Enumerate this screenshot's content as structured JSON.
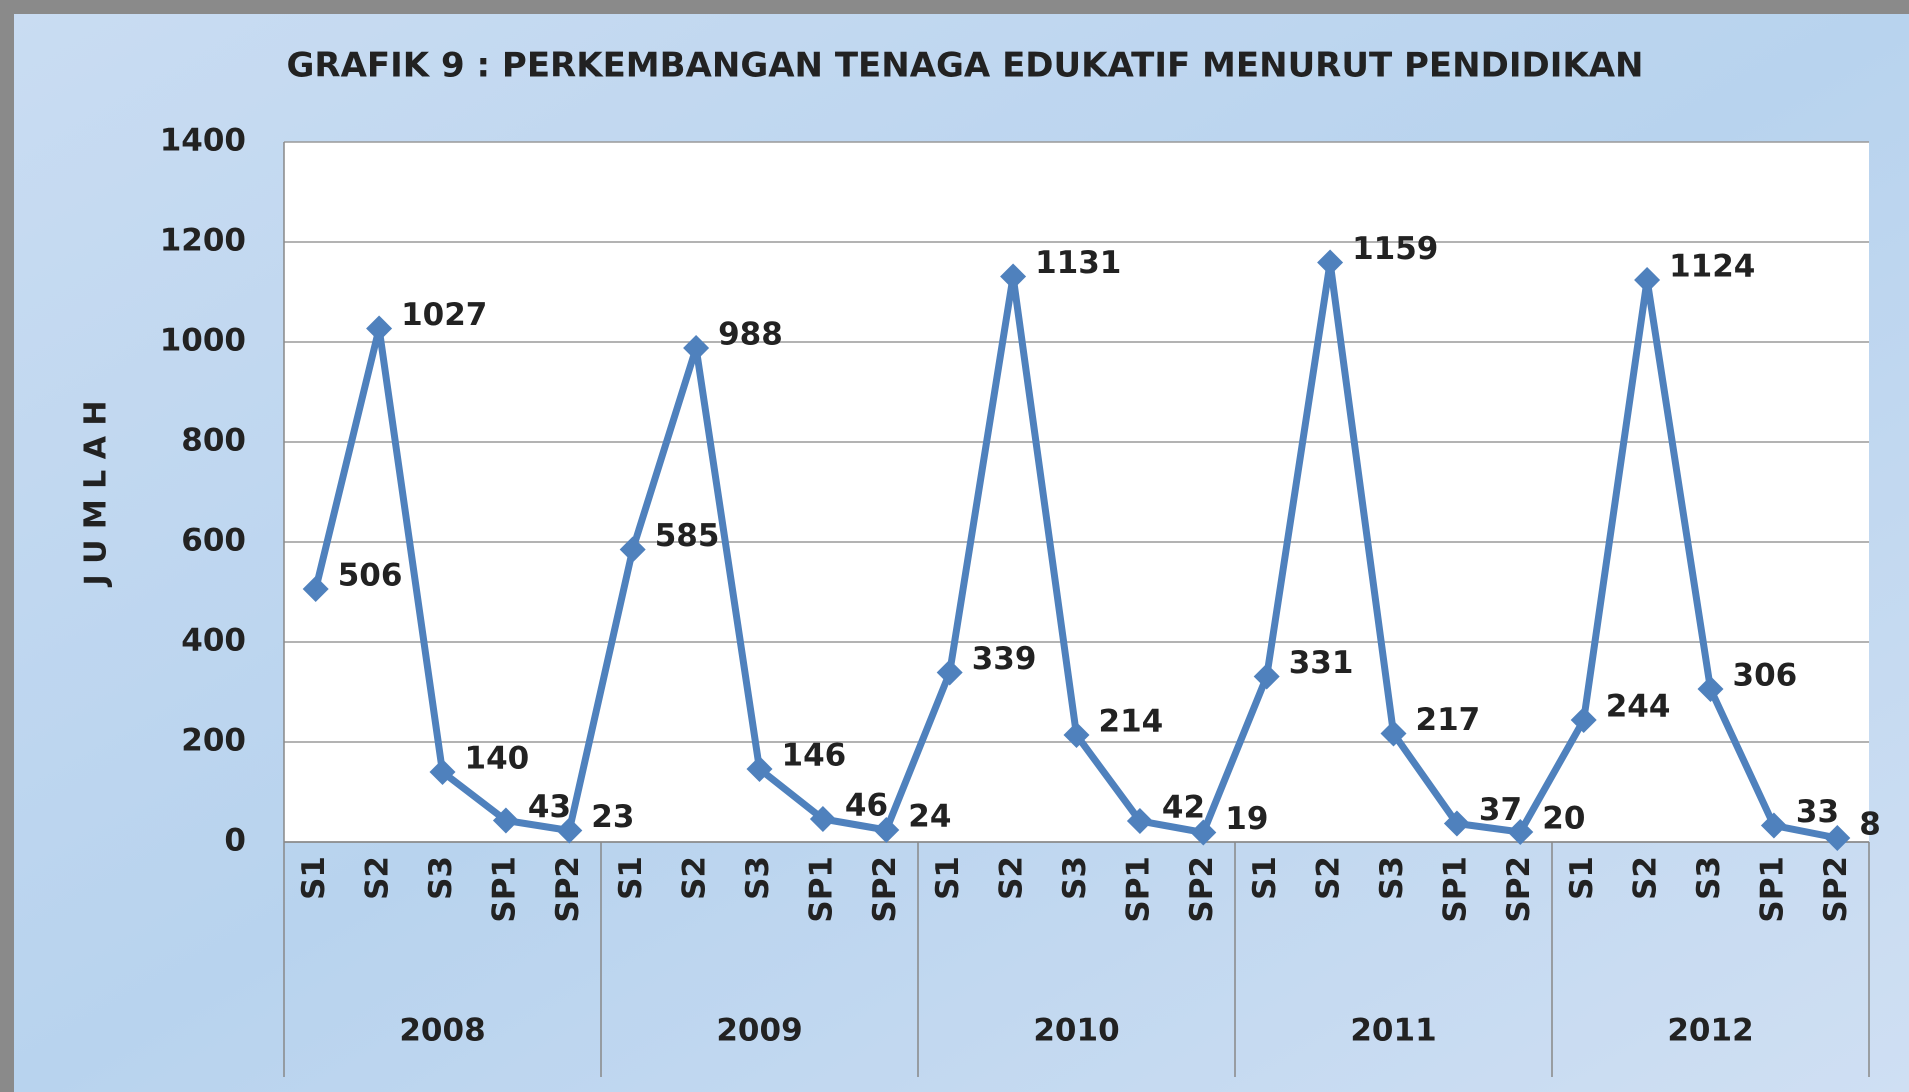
{
  "chart_data": {
    "type": "line",
    "title": "GRAFIK 9 : PERKEMBANGAN TENAGA EDUKATIF MENURUT PENDIDIKAN",
    "y_label": "J U M L A H",
    "categories": [
      "S1",
      "S2",
      "S3",
      "SP1",
      "SP2",
      "S1",
      "S2",
      "S3",
      "SP1",
      "SP2",
      "S1",
      "S2",
      "S3",
      "SP1",
      "SP2",
      "S1",
      "S2",
      "S3",
      "SP1",
      "SP2",
      "S1",
      "S2",
      "S3",
      "SP1",
      "SP2"
    ],
    "groups": [
      "2008",
      "2009",
      "2010",
      "2011",
      "2012"
    ],
    "series": [
      {
        "name": "Jumlah",
        "color": "#4f81bd",
        "values": [
          506,
          1027,
          140,
          43,
          23,
          585,
          988,
          146,
          46,
          24,
          339,
          1131,
          214,
          42,
          19,
          331,
          1159,
          217,
          37,
          20,
          244,
          1124,
          306,
          33,
          8
        ]
      }
    ],
    "ylim": [
      0,
      1400
    ],
    "yticks": [
      0,
      200,
      400,
      600,
      800,
      1000,
      1200,
      1400
    ],
    "grid": true
  }
}
